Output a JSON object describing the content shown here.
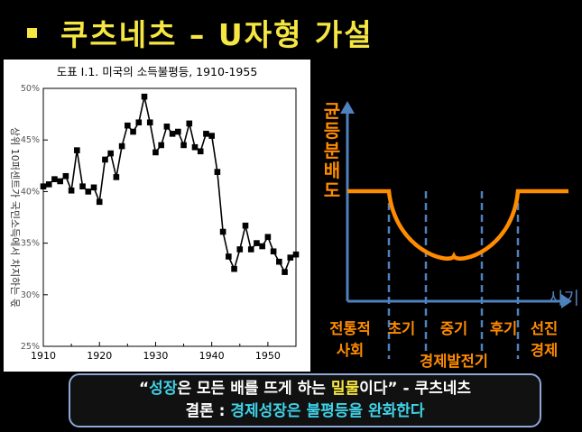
{
  "title": {
    "bullet": "▪",
    "text": "쿠츠네츠 – U자형 가설"
  },
  "chart_data": [
    {
      "type": "line",
      "title": "도표 I.1. 미국의 소득불평등, 1910-1955",
      "ylabel": "상위 10퍼센트가 국민소득에서 차지하는 몫",
      "xlim": [
        1910,
        1955
      ],
      "ylim": [
        25,
        50
      ],
      "x_ticks": [
        "1910",
        "1920",
        "1930",
        "1940",
        "1950"
      ],
      "y_ticks": [
        "25%",
        "30%",
        "35%",
        "40%",
        "45%",
        "50%"
      ],
      "grid": false,
      "marker": "square",
      "series": [
        {
          "x": [
            1910,
            1911,
            1912,
            1913,
            1914,
            1915,
            1916,
            1917,
            1918,
            1919,
            1920,
            1921,
            1922,
            1923,
            1924,
            1925,
            1926,
            1927,
            1928,
            1929,
            1930,
            1931,
            1932,
            1933,
            1934,
            1935,
            1936,
            1937,
            1938,
            1939,
            1940,
            1941,
            1942,
            1943,
            1944,
            1945,
            1946,
            1947,
            1948,
            1949,
            1950,
            1951,
            1952,
            1953,
            1954,
            1955
          ],
          "values": [
            40.5,
            40.7,
            41.2,
            41.0,
            41.5,
            40.1,
            44.0,
            40.5,
            40.0,
            40.4,
            39.0,
            43.1,
            43.7,
            41.4,
            44.4,
            46.4,
            45.8,
            46.7,
            49.2,
            46.7,
            43.8,
            44.5,
            46.3,
            45.6,
            45.8,
            44.5,
            46.6,
            44.3,
            43.9,
            45.6,
            45.4,
            41.9,
            36.1,
            33.7,
            32.5,
            34.4,
            36.7,
            34.4,
            35.0,
            34.7,
            35.6,
            34.2,
            33.2,
            32.2,
            33.6,
            33.9
          ]
        }
      ]
    },
    {
      "type": "line",
      "ylabel": "균등분배도",
      "xlabel": "시기",
      "shape": "U",
      "stages": [
        {
          "label_lines": [
            "전통적",
            "사회"
          ],
          "level": "high"
        },
        {
          "label_lines": [
            "초기"
          ],
          "level": "falling"
        },
        {
          "label_lines": [
            "중기"
          ],
          "level": "low"
        },
        {
          "label_lines": [
            "후기"
          ],
          "level": "rising"
        },
        {
          "label_lines": [
            "선진",
            "경제"
          ],
          "level": "high"
        }
      ],
      "development_label": "경제발전기",
      "colors": {
        "curve": "#ff8c00",
        "axes": "#4f81bd",
        "text": "#ff8c00",
        "xlabel": "#4f81bd"
      }
    }
  ],
  "quote": {
    "line1": [
      {
        "text": "“",
        "style": "white"
      },
      {
        "text": "성장",
        "style": "cyan"
      },
      {
        "text": "은 모든 배를 뜨게 하는 ",
        "style": "white"
      },
      {
        "text": "밀물",
        "style": "yellow"
      },
      {
        "text": "이다” - 쿠츠네츠",
        "style": "white"
      }
    ],
    "line2": [
      {
        "text": "결론 : ",
        "style": "white"
      },
      {
        "text": "경제성장은 불평등을 완화한다",
        "style": "cyan"
      }
    ]
  },
  "colors": {
    "title": "#f5e642",
    "highlight_cyan": "#3fd3e8",
    "highlight_yellow": "#f5e642",
    "box_border": "#8ea8d8"
  }
}
